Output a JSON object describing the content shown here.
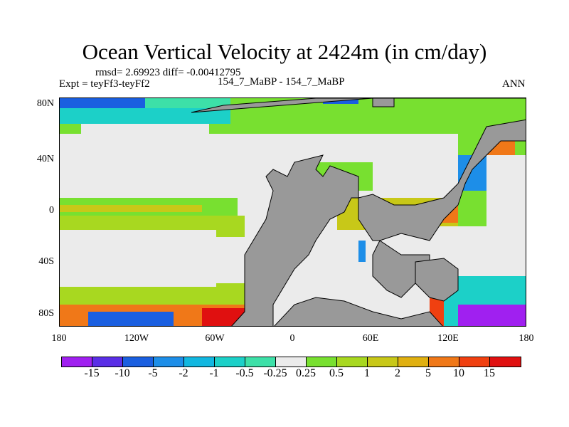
{
  "title": "Ocean Vertical Velocity at 2424m (in cm/day)",
  "stats": "rmsd= 2.69923 diff= -0.00412795",
  "expt": "Expt = teyFf3-teyFf2",
  "center_label": "154_7_MaBP - 154_7_MaBP",
  "season": "ANN",
  "lat_labels": [
    "80N",
    "40N",
    "0",
    "40S",
    "80S"
  ],
  "lon_labels": [
    "180",
    "120W",
    "60W",
    "0",
    "60E",
    "120E",
    "180"
  ],
  "colorbar": {
    "labels": [
      "-15",
      "-10",
      "-5",
      "-2",
      "-1",
      "-0.5",
      "-0.25",
      "0.25",
      "0.5",
      "1",
      "2",
      "5",
      "10",
      "15"
    ],
    "colors": [
      "#a020f0",
      "#5a2ee6",
      "#1a5fe0",
      "#1d8ee8",
      "#12b7e0",
      "#1cd0c8",
      "#3de0a8",
      "#ebebeb",
      "#78e030",
      "#a8d820",
      "#c8c818",
      "#e0b010",
      "#f07818",
      "#f04010",
      "#e01010"
    ]
  },
  "land_color": "#999999"
}
